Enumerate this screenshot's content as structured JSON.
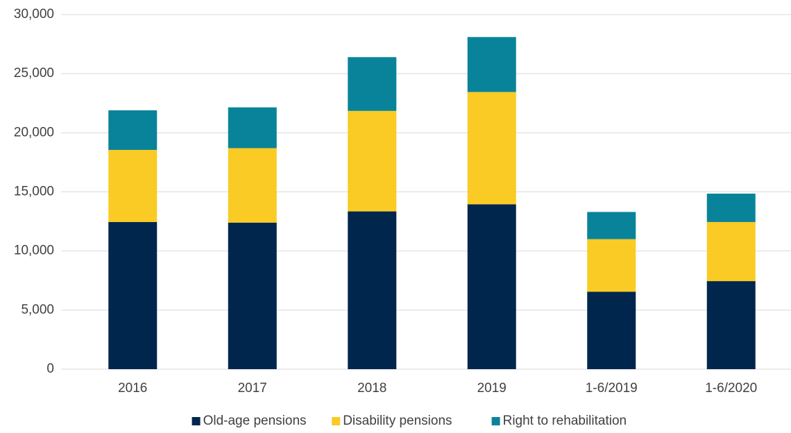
{
  "chart_data": {
    "type": "stacked_bar",
    "categories": [
      "2016",
      "2017",
      "2018",
      "2019",
      "1-6/2019",
      "1-6/2020"
    ],
    "series": [
      {
        "name": "Old-age pensions",
        "color": "#00264d",
        "values": [
          12450,
          12400,
          13350,
          13950,
          6550,
          7450
        ]
      },
      {
        "name": "Disability pensions",
        "color": "#f9cb24",
        "values": [
          6100,
          6300,
          8500,
          9500,
          4450,
          5000
        ]
      },
      {
        "name": "Right to rehabilitation",
        "color": "#09839a",
        "values": [
          3350,
          3450,
          4550,
          4650,
          2300,
          2400
        ]
      }
    ],
    "ylim": [
      0,
      30000
    ],
    "yticks": [
      0,
      {
        "value": 5000,
        "label": "5,000"
      },
      {
        "value": 10000,
        "label": "10,000"
      },
      {
        "value": 15000,
        "label": "15,000"
      },
      {
        "value": 20000,
        "label": "20,000"
      },
      {
        "value": 25000,
        "label": "25,000"
      },
      {
        "value": 30000,
        "label": "30,000"
      }
    ],
    "grid": true,
    "legend": "bottom"
  }
}
